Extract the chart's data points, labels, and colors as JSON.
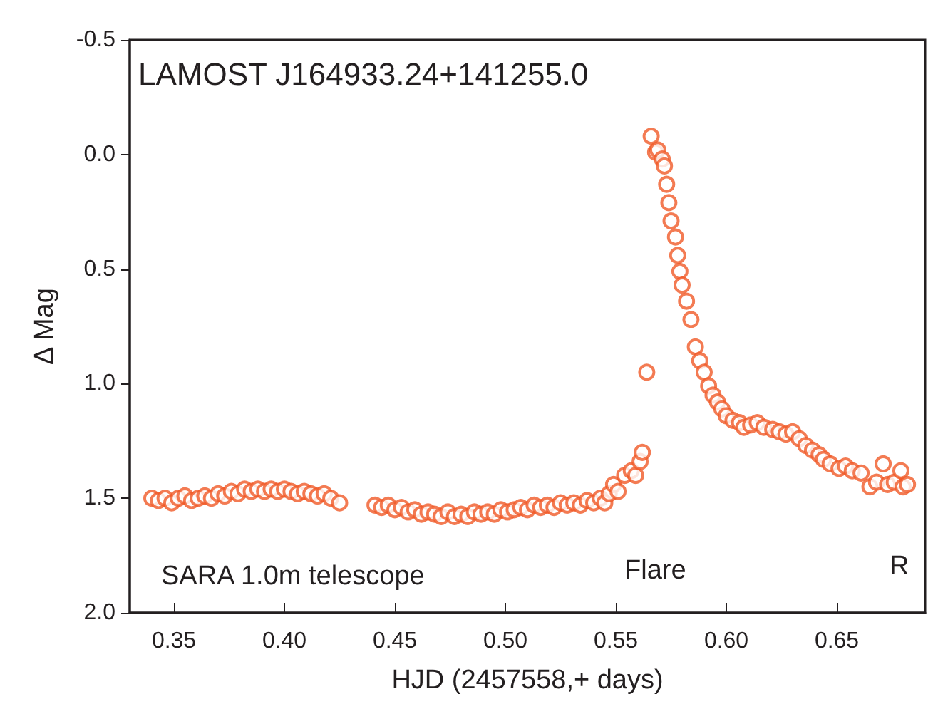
{
  "chart_data": {
    "type": "scatter",
    "title": "LAMOST J164933.24+141255.0",
    "xlabel": "HJD (2457558,+ days)",
    "ylabel": "Δ Mag",
    "annotations": [
      "SARA 1.0m telescope",
      "Flare",
      "R"
    ],
    "marker": "circle",
    "grid": false,
    "xlim": [
      0.33,
      0.69
    ],
    "ylim": [
      2.0,
      -0.5
    ],
    "xticks": [
      {
        "value": 0.35,
        "label": "0.35"
      },
      {
        "value": 0.4,
        "label": "0.40"
      },
      {
        "value": 0.45,
        "label": "0.45"
      },
      {
        "value": 0.5,
        "label": "0.50"
      },
      {
        "value": 0.55,
        "label": "0.55"
      },
      {
        "value": 0.6,
        "label": "0.60"
      },
      {
        "value": 0.65,
        "label": "0.65"
      }
    ],
    "yticks": [
      {
        "value": -0.5,
        "label": "-0.5"
      },
      {
        "value": 0,
        "label": "0.0"
      },
      {
        "value": 0.5,
        "label": "0.5"
      },
      {
        "value": 1,
        "label": "1.0"
      },
      {
        "value": 1.5,
        "label": "1.5"
      },
      {
        "value": 2,
        "label": "2.0"
      }
    ],
    "series": [
      {
        "color": "#f05a28",
        "x": [
          0.34,
          0.343,
          0.346,
          0.349,
          0.352,
          0.355,
          0.358,
          0.361,
          0.364,
          0.367,
          0.37,
          0.373,
          0.376,
          0.379,
          0.382,
          0.385,
          0.388,
          0.391,
          0.394,
          0.397,
          0.4,
          0.403,
          0.406,
          0.409,
          0.412,
          0.415,
          0.418,
          0.421,
          0.425,
          0.441,
          0.444,
          0.447,
          0.45,
          0.453,
          0.456,
          0.459,
          0.462,
          0.465,
          0.468,
          0.471,
          0.474,
          0.477,
          0.48,
          0.483,
          0.486,
          0.489,
          0.492,
          0.495,
          0.498,
          0.501,
          0.504,
          0.507,
          0.51,
          0.513,
          0.516,
          0.519,
          0.522,
          0.525,
          0.528,
          0.531,
          0.534,
          0.537,
          0.54,
          0.543,
          0.545,
          0.547,
          0.549,
          0.551,
          0.554,
          0.557,
          0.559,
          0.561,
          0.562,
          0.564,
          0.566,
          0.568,
          0.569,
          0.571,
          0.572,
          0.573,
          0.574,
          0.575,
          0.577,
          0.578,
          0.579,
          0.58,
          0.582,
          0.584,
          0.586,
          0.588,
          0.59,
          0.592,
          0.594,
          0.596,
          0.598,
          0.6,
          0.603,
          0.606,
          0.608,
          0.611,
          0.614,
          0.617,
          0.621,
          0.624,
          0.627,
          0.63,
          0.633,
          0.636,
          0.639,
          0.642,
          0.644,
          0.647,
          0.651,
          0.654,
          0.657,
          0.661,
          0.665,
          0.668,
          0.671,
          0.673,
          0.676,
          0.679,
          0.68,
          0.682
        ],
        "values": [
          1.5,
          1.51,
          1.5,
          1.52,
          1.5,
          1.49,
          1.51,
          1.5,
          1.49,
          1.5,
          1.48,
          1.49,
          1.47,
          1.48,
          1.46,
          1.47,
          1.46,
          1.47,
          1.46,
          1.47,
          1.46,
          1.47,
          1.48,
          1.47,
          1.48,
          1.49,
          1.48,
          1.5,
          1.52,
          1.53,
          1.54,
          1.53,
          1.55,
          1.54,
          1.56,
          1.55,
          1.57,
          1.56,
          1.57,
          1.58,
          1.56,
          1.58,
          1.57,
          1.58,
          1.56,
          1.57,
          1.56,
          1.57,
          1.55,
          1.56,
          1.55,
          1.54,
          1.55,
          1.53,
          1.54,
          1.53,
          1.54,
          1.52,
          1.53,
          1.52,
          1.53,
          1.51,
          1.52,
          1.5,
          1.52,
          1.48,
          1.44,
          1.47,
          1.4,
          1.38,
          1.4,
          1.34,
          1.3,
          0.95,
          -0.08,
          -0.01,
          -0.02,
          0.02,
          0.05,
          0.13,
          0.21,
          0.29,
          0.36,
          0.44,
          0.51,
          0.57,
          0.64,
          0.72,
          0.84,
          0.9,
          0.95,
          1.01,
          1.05,
          1.08,
          1.11,
          1.14,
          1.16,
          1.17,
          1.19,
          1.18,
          1.17,
          1.19,
          1.2,
          1.21,
          1.22,
          1.21,
          1.24,
          1.27,
          1.29,
          1.31,
          1.33,
          1.35,
          1.37,
          1.36,
          1.38,
          1.39,
          1.45,
          1.43,
          1.35,
          1.44,
          1.43,
          1.38,
          1.45,
          1.44
        ]
      }
    ]
  }
}
